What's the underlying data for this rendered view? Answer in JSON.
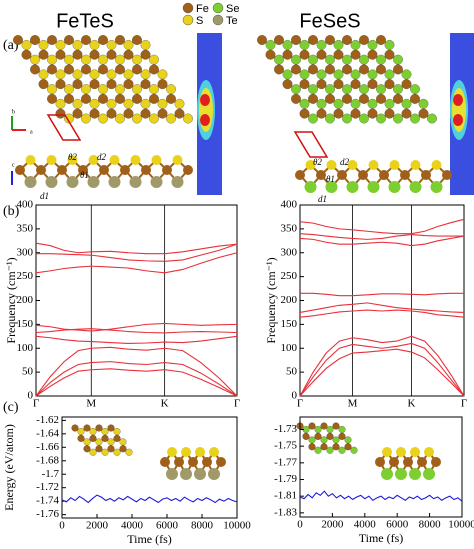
{
  "figure": {
    "panels": [
      "(a)",
      "(b)",
      "(c)"
    ],
    "titles": [
      "FeTeS",
      "FeSeS"
    ],
    "legend": [
      {
        "label": "Fe",
        "color": "#a0601a"
      },
      {
        "label": "Se",
        "color": "#7ccf2f"
      },
      {
        "label": "S",
        "color": "#e8d21a"
      },
      {
        "label": "Te",
        "color": "#a09a6a"
      }
    ],
    "axis_letters": [
      "b",
      "a",
      "c"
    ],
    "left_annotations": [
      "θ2",
      "d2",
      "θ1",
      "d1"
    ],
    "right_annotations": [
      "θ2",
      "d2",
      "θ1",
      "d1"
    ]
  },
  "chart_data": [
    {
      "type": "line",
      "xlim": [
        0,
        1
      ],
      "ylim": [
        0,
        400
      ],
      "xgrid": true,
      "xticks": [
        {
          "value": 0,
          "label": "Γ"
        },
        {
          "value": 0.275,
          "label": "M"
        },
        {
          "value": 0.64,
          "label": "K"
        },
        {
          "value": 1,
          "label": "Γ"
        }
      ],
      "yticks": [
        0,
        50,
        100,
        150,
        200,
        250,
        300,
        350,
        400
      ],
      "ylabel": "Frequency (cm⁻¹)",
      "x": [
        0,
        0.07,
        0.14,
        0.21,
        0.275,
        0.37,
        0.46,
        0.55,
        0.64,
        0.73,
        0.82,
        0.91,
        1
      ],
      "series": [
        {
          "color": "#e8303a",
          "values": [
            0,
            20,
            38,
            52,
            55,
            57,
            54,
            52,
            55,
            50,
            35,
            18,
            0
          ]
        },
        {
          "color": "#e8303a",
          "values": [
            0,
            28,
            50,
            66,
            70,
            72,
            68,
            66,
            70,
            66,
            48,
            25,
            0
          ]
        },
        {
          "color": "#e8303a",
          "values": [
            0,
            40,
            72,
            95,
            100,
            102,
            98,
            96,
            100,
            95,
            70,
            38,
            0
          ]
        },
        {
          "color": "#e8303a",
          "values": [
            125,
            122,
            118,
            115,
            114,
            112,
            110,
            111,
            113,
            112,
            115,
            120,
            125
          ]
        },
        {
          "color": "#e8303a",
          "values": [
            133,
            135,
            138,
            140,
            141,
            138,
            135,
            133,
            132,
            134,
            135,
            134,
            133
          ]
        },
        {
          "color": "#e8303a",
          "values": [
            148,
            145,
            140,
            138,
            136,
            140,
            145,
            150,
            152,
            150,
            148,
            149,
            150
          ]
        },
        {
          "color": "#e8303a",
          "values": [
            258,
            262,
            267,
            270,
            272,
            270,
            268,
            262,
            258,
            265,
            278,
            290,
            300
          ]
        },
        {
          "color": "#e8303a",
          "values": [
            298,
            298,
            297,
            296,
            295,
            290,
            285,
            283,
            282,
            285,
            295,
            305,
            318
          ]
        },
        {
          "color": "#e8303a",
          "values": [
            320,
            315,
            305,
            300,
            302,
            303,
            300,
            298,
            298,
            302,
            308,
            314,
            318
          ]
        }
      ]
    },
    {
      "type": "line",
      "xlim": [
        0,
        1
      ],
      "ylim": [
        0,
        400
      ],
      "xgrid": true,
      "xticks": [
        {
          "value": 0,
          "label": "Γ"
        },
        {
          "value": 0.32,
          "label": "M"
        },
        {
          "value": 0.68,
          "label": "K"
        },
        {
          "value": 1,
          "label": "Γ"
        }
      ],
      "yticks": [
        0,
        50,
        100,
        150,
        200,
        250,
        300,
        350,
        400
      ],
      "ylabel": "Frequency (cm⁻¹)",
      "x": [
        0,
        0.08,
        0.16,
        0.24,
        0.32,
        0.41,
        0.5,
        0.59,
        0.68,
        0.76,
        0.84,
        0.92,
        1
      ],
      "series": [
        {
          "color": "#e8303a",
          "values": [
            0,
            30,
            58,
            78,
            90,
            92,
            95,
            98,
            92,
            80,
            55,
            28,
            0
          ]
        },
        {
          "color": "#e8303a",
          "values": [
            0,
            40,
            75,
            100,
            108,
            104,
            100,
            104,
            110,
            100,
            70,
            35,
            0
          ]
        },
        {
          "color": "#e8303a",
          "values": [
            0,
            50,
            90,
            115,
            122,
            118,
            112,
            115,
            125,
            115,
            85,
            45,
            0
          ]
        },
        {
          "color": "#e8303a",
          "values": [
            165,
            168,
            172,
            176,
            178,
            180,
            178,
            180,
            178,
            175,
            170,
            168,
            165
          ]
        },
        {
          "color": "#e8303a",
          "values": [
            175,
            180,
            185,
            190,
            192,
            195,
            190,
            185,
            182,
            180,
            178,
            176,
            175
          ]
        },
        {
          "color": "#e8303a",
          "values": [
            215,
            215,
            213,
            210,
            210,
            212,
            214,
            214,
            213,
            212,
            214,
            215,
            215
          ]
        },
        {
          "color": "#e8303a",
          "values": [
            330,
            328,
            322,
            318,
            318,
            320,
            322,
            320,
            315,
            318,
            325,
            330,
            335
          ]
        },
        {
          "color": "#e8303a",
          "values": [
            340,
            338,
            335,
            332,
            330,
            328,
            330,
            335,
            338,
            336,
            335,
            335,
            335
          ]
        },
        {
          "color": "#e8303a",
          "values": [
            365,
            362,
            355,
            350,
            348,
            345,
            342,
            340,
            340,
            345,
            355,
            363,
            370
          ]
        }
      ]
    },
    {
      "type": "line",
      "xlim": [
        0,
        10000
      ],
      "ylim": [
        -1.765,
        -1.615
      ],
      "xgrid": false,
      "xticks": [
        0,
        2000,
        4000,
        6000,
        8000,
        10000
      ],
      "yticks": [
        -1.76,
        -1.74,
        -1.72,
        -1.7,
        -1.68,
        -1.66,
        -1.64,
        -1.62
      ],
      "xlabel": "Time (fs)",
      "ylabel": "Energy (eV/atom)",
      "x": [
        0,
        250,
        500,
        750,
        1000,
        1250,
        1500,
        1750,
        2000,
        2250,
        2500,
        2750,
        3000,
        3250,
        3500,
        3750,
        4000,
        4250,
        4500,
        4750,
        5000,
        5250,
        5500,
        5750,
        6000,
        6250,
        6500,
        6750,
        7000,
        7250,
        7500,
        7750,
        8000,
        8250,
        8500,
        8750,
        9000,
        9250,
        9500,
        9750,
        10000
      ],
      "series": [
        {
          "color": "#1a1adc",
          "values": [
            -1.738,
            -1.741,
            -1.735,
            -1.739,
            -1.733,
            -1.737,
            -1.742,
            -1.736,
            -1.731,
            -1.734,
            -1.739,
            -1.736,
            -1.74,
            -1.735,
            -1.738,
            -1.733,
            -1.737,
            -1.741,
            -1.736,
            -1.739,
            -1.734,
            -1.738,
            -1.742,
            -1.737,
            -1.735,
            -1.739,
            -1.736,
            -1.74,
            -1.734,
            -1.738,
            -1.741,
            -1.736,
            -1.739,
            -1.735,
            -1.738,
            -1.742,
            -1.737,
            -1.74,
            -1.736,
            -1.739,
            -1.741
          ]
        }
      ]
    },
    {
      "type": "line",
      "xlim": [
        0,
        10000
      ],
      "ylim": [
        -1.835,
        -1.715
      ],
      "xgrid": false,
      "xticks": [
        0,
        2000,
        4000,
        6000,
        8000,
        10000
      ],
      "yticks": [
        -1.83,
        -1.81,
        -1.79,
        -1.77,
        -1.75,
        -1.73
      ],
      "xlabel": "Time (fs)",
      "x": [
        0,
        250,
        500,
        750,
        1000,
        1250,
        1500,
        1750,
        2000,
        2250,
        2500,
        2750,
        3000,
        3250,
        3500,
        3750,
        4000,
        4250,
        4500,
        4750,
        5000,
        5250,
        5500,
        5750,
        6000,
        6250,
        6500,
        6750,
        7000,
        7250,
        7500,
        7750,
        8000,
        8250,
        8500,
        8750,
        9000,
        9250,
        9500,
        9750,
        10000
      ],
      "series": [
        {
          "color": "#1a1adc",
          "values": [
            -1.811,
            -1.813,
            -1.808,
            -1.812,
            -1.806,
            -1.809,
            -1.804,
            -1.81,
            -1.807,
            -1.812,
            -1.809,
            -1.813,
            -1.81,
            -1.814,
            -1.811,
            -1.809,
            -1.813,
            -1.81,
            -1.815,
            -1.812,
            -1.81,
            -1.814,
            -1.811,
            -1.813,
            -1.809,
            -1.812,
            -1.815,
            -1.811,
            -1.813,
            -1.81,
            -1.814,
            -1.812,
            -1.809,
            -1.813,
            -1.811,
            -1.815,
            -1.812,
            -1.81,
            -1.814,
            -1.812,
            -1.816
          ]
        }
      ]
    }
  ]
}
